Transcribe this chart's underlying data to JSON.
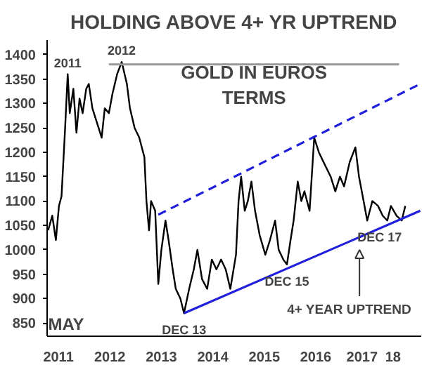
{
  "chart_data": {
    "type": "line",
    "title": "HOLDING ABOVE 4+ YR UPTREND",
    "xlim": [
      2011.28,
      2018.55
    ],
    "ylim": [
      823,
      1430
    ],
    "xticks": [
      {
        "value": 2011.5,
        "label": "2011"
      },
      {
        "value": 2012.5,
        "label": "2012"
      },
      {
        "value": 2013.5,
        "label": "2013"
      },
      {
        "value": 2014.5,
        "label": "2014"
      },
      {
        "value": 2015.5,
        "label": "2015"
      },
      {
        "value": 2016.5,
        "label": "2016"
      },
      {
        "value": 2017.4,
        "label": "2017"
      },
      {
        "value": 2018.0,
        "label": "18"
      }
    ],
    "yticks": [
      850,
      900,
      950,
      1000,
      1050,
      1100,
      1150,
      1200,
      1250,
      1300,
      1350,
      1400
    ],
    "grid": false,
    "series": [
      {
        "color": "#000000",
        "x": [
          2011.3,
          2011.38,
          2011.45,
          2011.51,
          2011.56,
          2011.63,
          2011.68,
          2011.72,
          2011.79,
          2011.85,
          2011.91,
          2011.97,
          2012.04,
          2012.09,
          2012.16,
          2012.25,
          2012.34,
          2012.4,
          2012.48,
          2012.55,
          2012.64,
          2012.73,
          2012.83,
          2012.89,
          2012.98,
          2013.07,
          2013.17,
          2013.21,
          2013.26,
          2013.3,
          2013.38,
          2013.44,
          2013.5,
          2013.58,
          2013.64,
          2013.72,
          2013.78,
          2013.87,
          2013.94,
          2014.04,
          2014.13,
          2014.2,
          2014.29,
          2014.39,
          2014.48,
          2014.57,
          2014.66,
          2014.75,
          2014.84,
          2014.95,
          2015.0,
          2015.05,
          2015.12,
          2015.18,
          2015.25,
          2015.32,
          2015.41,
          2015.52,
          2015.61,
          2015.71,
          2015.78,
          2015.87,
          2015.94,
          2016.01,
          2016.07,
          2016.15,
          2016.22,
          2016.28,
          2016.38,
          2016.47,
          2016.56,
          2016.65,
          2016.79,
          2016.88,
          2016.97,
          2017.05,
          2017.16,
          2017.27,
          2017.34,
          2017.43,
          2017.5,
          2017.6,
          2017.71,
          2017.8,
          2017.89,
          2017.96,
          2018.07,
          2018.17,
          2018.24
        ],
        "values": [
          1040,
          1070,
          1020,
          1090,
          1110,
          1250,
          1360,
          1280,
          1330,
          1240,
          1310,
          1280,
          1330,
          1340,
          1290,
          1260,
          1230,
          1290,
          1280,
          1320,
          1360,
          1385,
          1340,
          1290,
          1250,
          1230,
          1190,
          1100,
          1040,
          1100,
          1080,
          930,
          1000,
          1060,
          1020,
          960,
          920,
          900,
          870,
          920,
          960,
          1000,
          940,
          920,
          980,
          960,
          980,
          960,
          920,
          990,
          1100,
          1150,
          1080,
          1100,
          1140,
          1080,
          1030,
          990,
          1020,
          1060,
          1000,
          980,
          970,
          1020,
          1060,
          1140,
          1100,
          1120,
          1080,
          1230,
          1200,
          1180,
          1150,
          1120,
          1150,
          1130,
          1180,
          1210,
          1150,
          1100,
          1060,
          1100,
          1090,
          1070,
          1060,
          1090,
          1070,
          1060,
          1090
        ]
      },
      {
        "color": "#1f1fdc",
        "x": [
          2013.94,
          2018.53
        ],
        "values": [
          870,
          1080
        ]
      },
      {
        "color": "#1f1fdc",
        "line_style": "dashed",
        "x": [
          2013.44,
          2018.53
        ],
        "values": [
          1072,
          1340
        ]
      },
      {
        "color": "#999999",
        "x": [
          2012.48,
          2018.12
        ],
        "values": [
          1380,
          1380
        ]
      }
    ],
    "annotations": [
      {
        "text": "2011",
        "x": 2011.68,
        "y": 1360
      },
      {
        "text": "2012",
        "x": 2012.73,
        "y": 1385
      },
      {
        "text": "DEC 13",
        "x": 2013.94,
        "y": 870
      },
      {
        "text": "DEC 15",
        "x": 2015.94,
        "y": 970
      },
      {
        "text": "DEC 17",
        "x": 2018.17,
        "y": 1060
      },
      "GOLD IN EUROS\nTERMS",
      "4+ YEAR UPTREND",
      "MAY"
    ]
  }
}
